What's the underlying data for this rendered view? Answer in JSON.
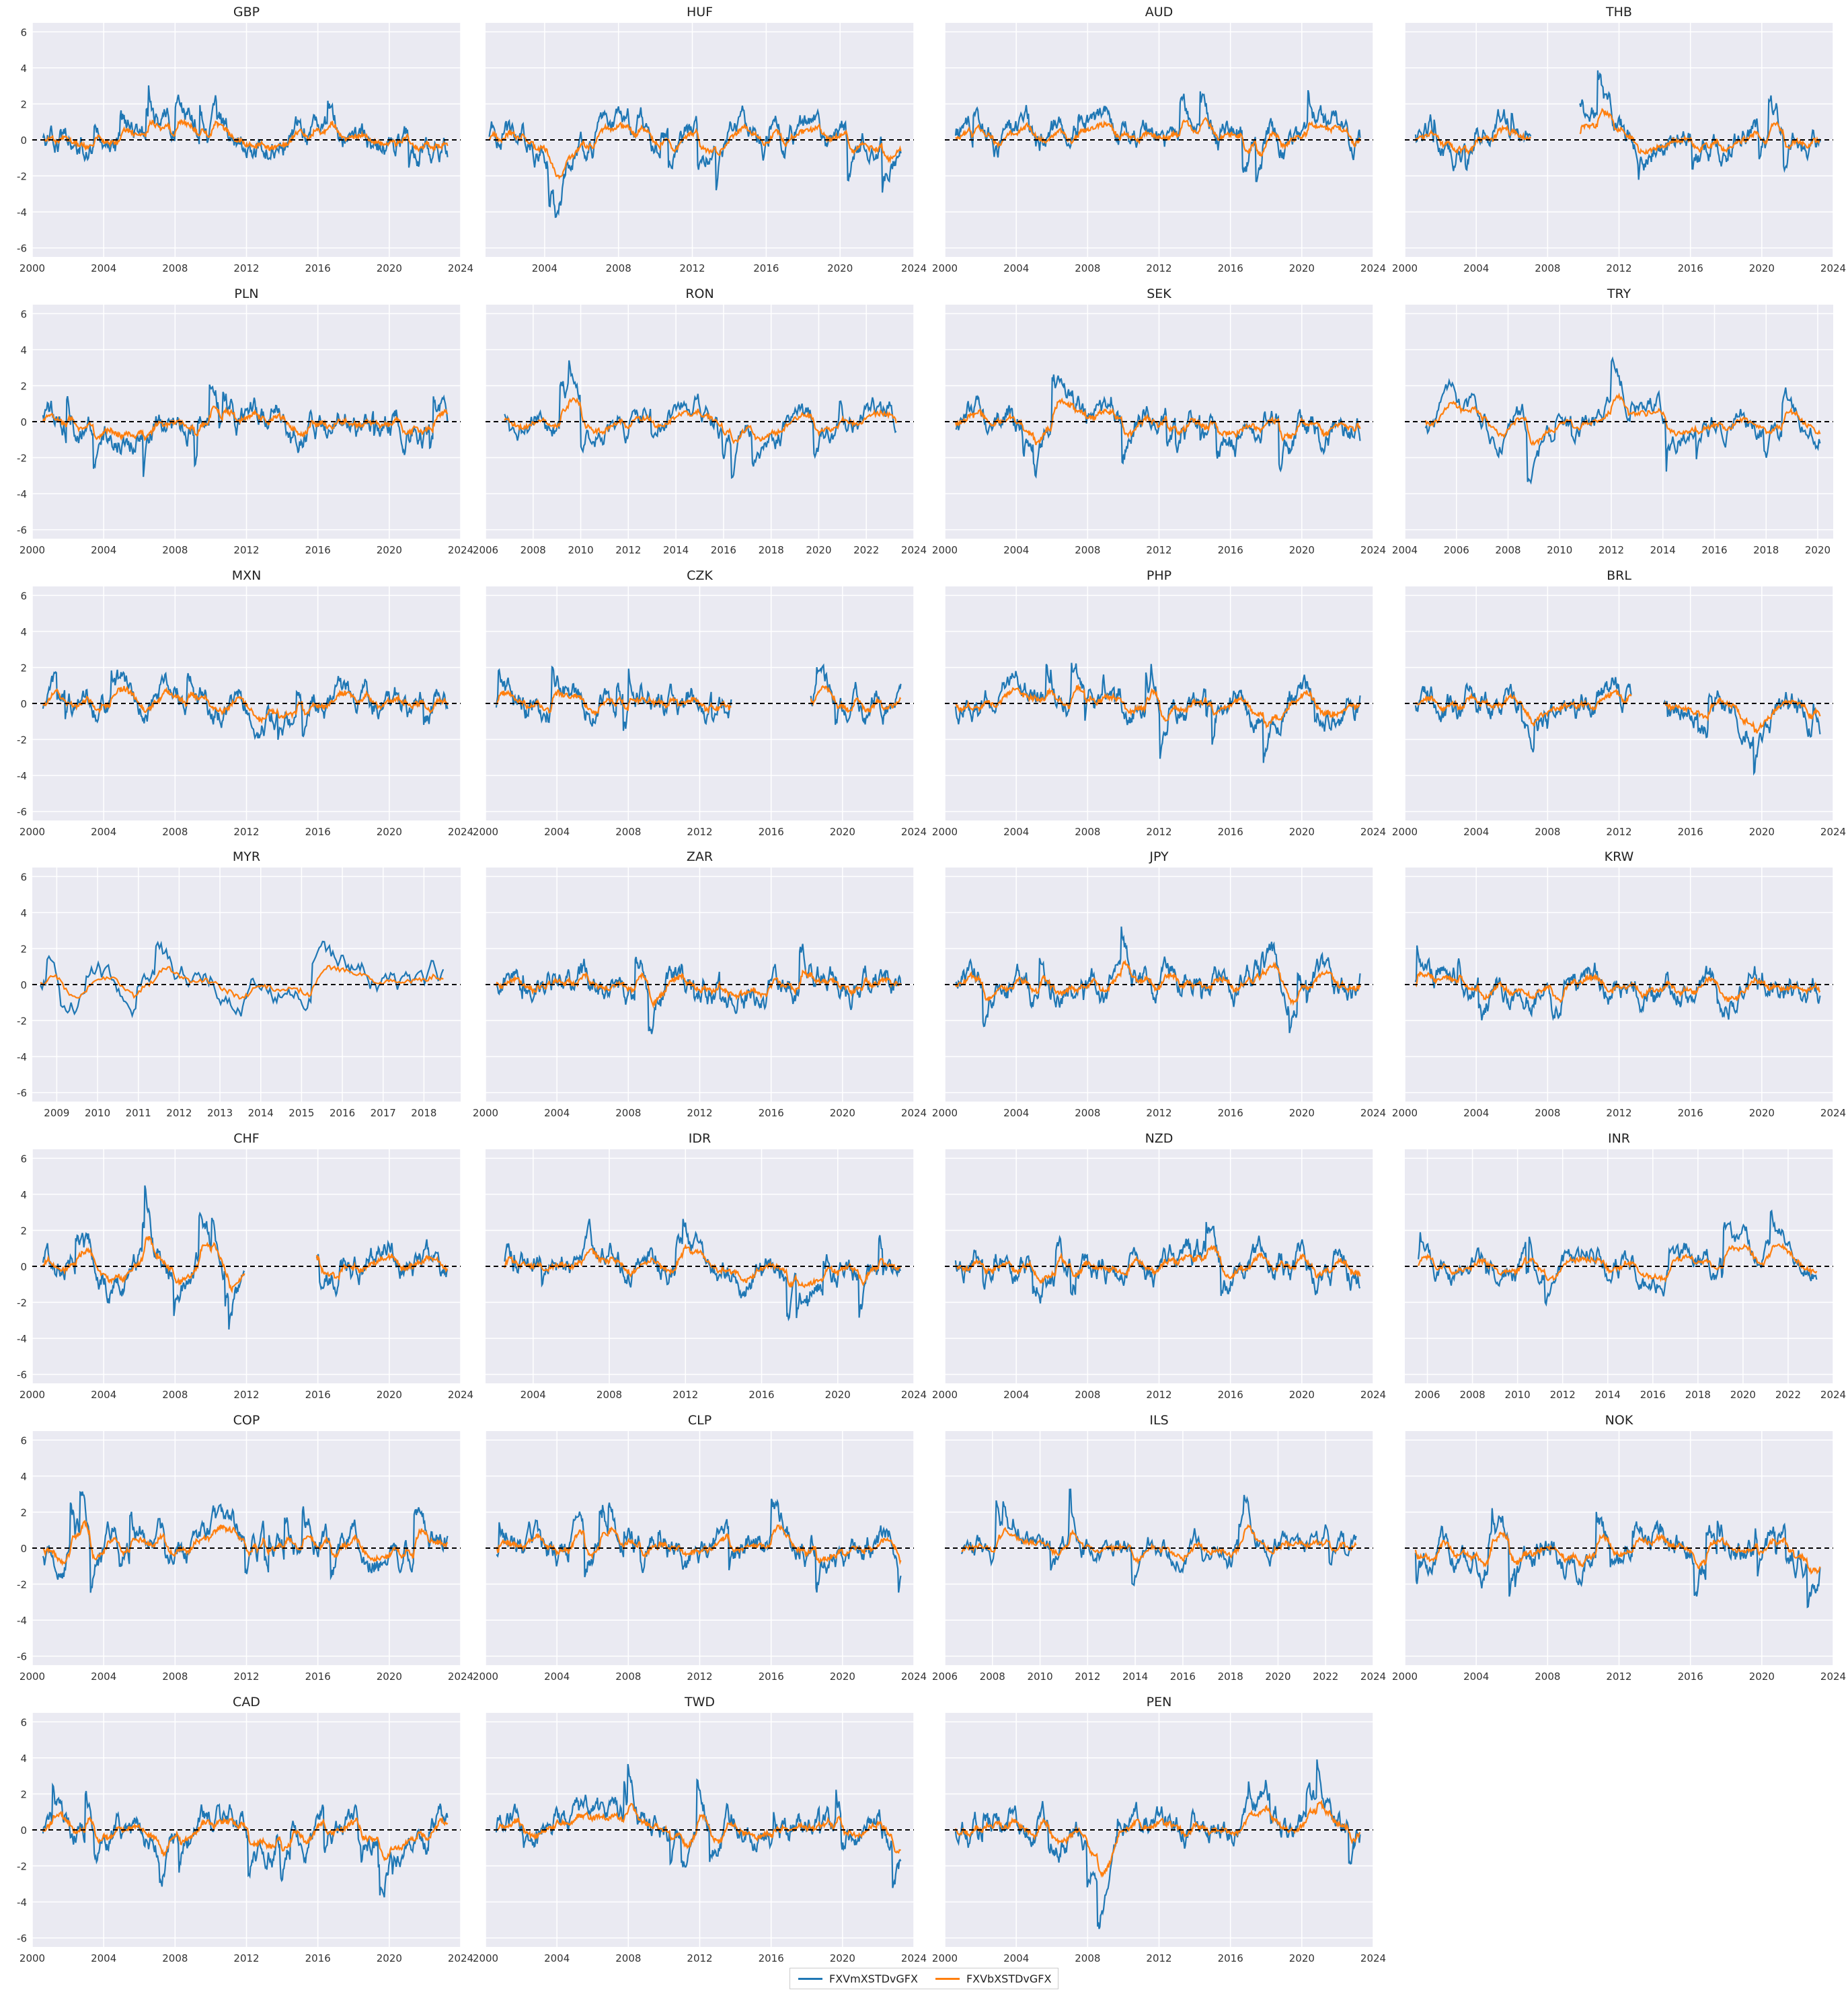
{
  "colors": {
    "series1": "#1f77b4",
    "series2": "#ff7f0e",
    "panel_bg": "#eaeaf2",
    "grid": "#ffffff",
    "zero_line": "#000000"
  },
  "legend": {
    "series1": "FXVmXSTDvGFX",
    "series2": "FXVbXSTDvGFX"
  },
  "chart_data": {
    "type": "line",
    "shared_y": true,
    "ylim": [
      -6.5,
      6.5
    ],
    "yticks": [
      -6,
      -4,
      -2,
      0,
      2,
      4,
      6
    ],
    "zero_line": true,
    "grid": true,
    "panels": [
      {
        "title": "GBP",
        "xlim": [
          2000,
          2024
        ],
        "xticks": [
          2000,
          2004,
          2008,
          2012,
          2016,
          2020,
          2024
        ],
        "start": 2000.6,
        "end": 2023.3,
        "gaps": []
      },
      {
        "title": "HUF",
        "xlim": [
          2000.8,
          2024
        ],
        "xticks": [
          2004,
          2008,
          2012,
          2016,
          2020,
          2024
        ],
        "start": 2001.0,
        "end": 2023.3,
        "gaps": []
      },
      {
        "title": "AUD",
        "xlim": [
          2000,
          2024
        ],
        "xticks": [
          2000,
          2004,
          2008,
          2012,
          2016,
          2020,
          2024
        ],
        "start": 2000.6,
        "end": 2023.3,
        "gaps": []
      },
      {
        "title": "THB",
        "xlim": [
          2000,
          2024
        ],
        "xticks": [
          2000,
          2004,
          2008,
          2012,
          2016,
          2020,
          2024
        ],
        "start": 2000.6,
        "end": 2023.3,
        "gaps": [
          [
            2007.1,
            2009.8
          ]
        ]
      },
      {
        "title": "PLN",
        "xlim": [
          2000,
          2024
        ],
        "xticks": [
          2000,
          2004,
          2008,
          2012,
          2016,
          2020,
          2024
        ],
        "start": 2000.6,
        "end": 2023.3,
        "gaps": []
      },
      {
        "title": "RON",
        "xlim": [
          2006,
          2024
        ],
        "xticks": [
          2006,
          2008,
          2010,
          2012,
          2014,
          2016,
          2018,
          2020,
          2022,
          2024
        ],
        "start": 2006.8,
        "end": 2023.3,
        "gaps": []
      },
      {
        "title": "SEK",
        "xlim": [
          2000,
          2024
        ],
        "xticks": [
          2000,
          2004,
          2008,
          2012,
          2016,
          2020,
          2024
        ],
        "start": 2000.6,
        "end": 2023.3,
        "gaps": []
      },
      {
        "title": "TRY",
        "xlim": [
          2004,
          2020.6
        ],
        "xticks": [
          2004,
          2006,
          2008,
          2010,
          2012,
          2014,
          2016,
          2018,
          2020
        ],
        "start": 2004.8,
        "end": 2020.1,
        "gaps": []
      },
      {
        "title": "MXN",
        "xlim": [
          2000,
          2024
        ],
        "xticks": [
          2000,
          2004,
          2008,
          2012,
          2016,
          2020,
          2024
        ],
        "start": 2000.6,
        "end": 2023.3,
        "gaps": []
      },
      {
        "title": "CZK",
        "xlim": [
          2000,
          2024
        ],
        "xticks": [
          2000,
          2004,
          2008,
          2012,
          2016,
          2020,
          2024
        ],
        "start": 2000.6,
        "end": 2023.3,
        "gaps": [
          [
            2013.8,
            2018.2
          ]
        ]
      },
      {
        "title": "PHP",
        "xlim": [
          2000,
          2024
        ],
        "xticks": [
          2000,
          2004,
          2008,
          2012,
          2016,
          2020,
          2024
        ],
        "start": 2000.6,
        "end": 2023.3,
        "gaps": []
      },
      {
        "title": "BRL",
        "xlim": [
          2000,
          2024
        ],
        "xticks": [
          2000,
          2004,
          2008,
          2012,
          2016,
          2020,
          2024
        ],
        "start": 2000.6,
        "end": 2023.3,
        "gaps": [
          [
            2012.7,
            2014.5
          ]
        ]
      },
      {
        "title": "MYR",
        "xlim": [
          2008.4,
          2018.9
        ],
        "xticks": [
          2009,
          2010,
          2011,
          2012,
          2013,
          2014,
          2015,
          2016,
          2017,
          2018
        ],
        "start": 2008.6,
        "end": 2018.5,
        "gaps": []
      },
      {
        "title": "ZAR",
        "xlim": [
          2000,
          2024
        ],
        "xticks": [
          2000,
          2004,
          2008,
          2012,
          2016,
          2020,
          2024
        ],
        "start": 2000.6,
        "end": 2023.3,
        "gaps": []
      },
      {
        "title": "JPY",
        "xlim": [
          2000,
          2024
        ],
        "xticks": [
          2000,
          2004,
          2008,
          2012,
          2016,
          2020,
          2024
        ],
        "start": 2000.6,
        "end": 2023.3,
        "gaps": []
      },
      {
        "title": "KRW",
        "xlim": [
          2000,
          2024
        ],
        "xticks": [
          2000,
          2004,
          2008,
          2012,
          2016,
          2020,
          2024
        ],
        "start": 2000.6,
        "end": 2023.3,
        "gaps": []
      },
      {
        "title": "CHF",
        "xlim": [
          2000,
          2024
        ],
        "xticks": [
          2000,
          2004,
          2008,
          2012,
          2016,
          2020,
          2024
        ],
        "start": 2000.6,
        "end": 2023.3,
        "gaps": [
          [
            2011.9,
            2015.9
          ]
        ]
      },
      {
        "title": "IDR",
        "xlim": [
          2001.5,
          2024
        ],
        "xticks": [
          2004,
          2008,
          2012,
          2016,
          2020,
          2024
        ],
        "start": 2002.5,
        "end": 2023.3,
        "gaps": []
      },
      {
        "title": "NZD",
        "xlim": [
          2000,
          2024
        ],
        "xticks": [
          2000,
          2004,
          2008,
          2012,
          2016,
          2020,
          2024
        ],
        "start": 2000.6,
        "end": 2023.3,
        "gaps": []
      },
      {
        "title": "INR",
        "xlim": [
          2005,
          2024
        ],
        "xticks": [
          2006,
          2008,
          2010,
          2012,
          2014,
          2016,
          2018,
          2020,
          2022,
          2024
        ],
        "start": 2005.6,
        "end": 2023.3,
        "gaps": []
      },
      {
        "title": "COP",
        "xlim": [
          2000,
          2024
        ],
        "xticks": [
          2000,
          2004,
          2008,
          2012,
          2016,
          2020,
          2024
        ],
        "start": 2000.6,
        "end": 2023.3,
        "gaps": []
      },
      {
        "title": "CLP",
        "xlim": [
          2000,
          2024
        ],
        "xticks": [
          2000,
          2004,
          2008,
          2012,
          2016,
          2020,
          2024
        ],
        "start": 2000.6,
        "end": 2023.3,
        "gaps": []
      },
      {
        "title": "ILS",
        "xlim": [
          2006,
          2024
        ],
        "xticks": [
          2006,
          2008,
          2010,
          2012,
          2014,
          2016,
          2018,
          2020,
          2022,
          2024
        ],
        "start": 2006.7,
        "end": 2023.3,
        "gaps": []
      },
      {
        "title": "NOK",
        "xlim": [
          2000,
          2024
        ],
        "xticks": [
          2000,
          2004,
          2008,
          2012,
          2016,
          2020,
          2024
        ],
        "start": 2000.6,
        "end": 2023.3,
        "gaps": []
      },
      {
        "title": "CAD",
        "xlim": [
          2000,
          2024
        ],
        "xticks": [
          2000,
          2004,
          2008,
          2012,
          2016,
          2020,
          2024
        ],
        "start": 2000.6,
        "end": 2023.3,
        "gaps": []
      },
      {
        "title": "TWD",
        "xlim": [
          2000,
          2024
        ],
        "xticks": [
          2000,
          2004,
          2008,
          2012,
          2016,
          2020,
          2024
        ],
        "start": 2000.6,
        "end": 2023.3,
        "gaps": []
      },
      {
        "title": "PEN",
        "xlim": [
          2000,
          2024
        ],
        "xticks": [
          2000,
          2004,
          2008,
          2012,
          2016,
          2020,
          2024
        ],
        "start": 2000.6,
        "end": 2023.3,
        "gaps": []
      }
    ]
  }
}
